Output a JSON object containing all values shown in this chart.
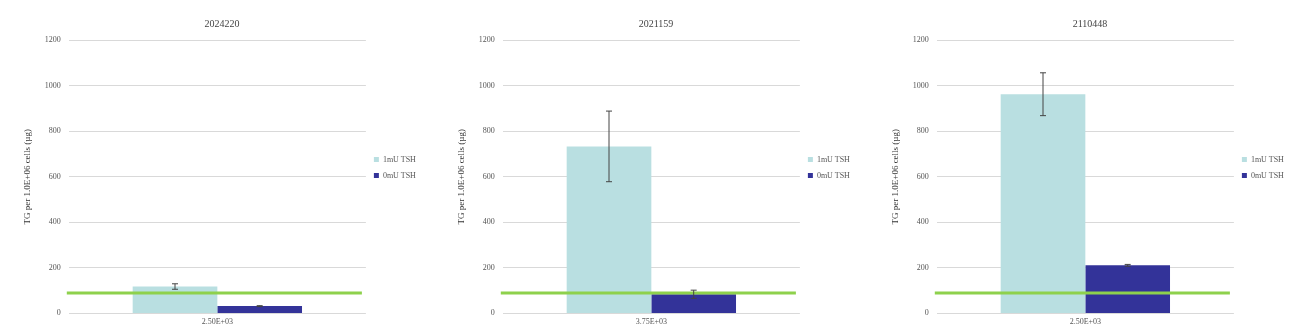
{
  "chart_data": [
    {
      "type": "bar",
      "title": "2024220",
      "ylabel": "TG per 1.0E+06 cells (µg)",
      "categories": [
        "2.50E+03"
      ],
      "ylim": [
        0,
        1200
      ],
      "yticks": [
        0,
        200,
        400,
        600,
        800,
        1000,
        1200
      ],
      "grid": "y",
      "legend": "right",
      "series": [
        {
          "name": "1mU TSH",
          "color": "#b9dfe1",
          "values": [
            118
          ],
          "errors": [
            12
          ]
        },
        {
          "name": "0mU TSH",
          "color": "#333399",
          "values": [
            32
          ],
          "errors": [
            2
          ]
        }
      ],
      "ref_lines": [
        {
          "axis": "y",
          "value": 90,
          "color": "#8ed14c"
        }
      ]
    },
    {
      "type": "bar",
      "title": "2021159",
      "ylabel": "TG per 1.0E+06 cells (µg)",
      "categories": [
        "3.75E+03"
      ],
      "ylim": [
        0,
        1200
      ],
      "yticks": [
        0,
        200,
        400,
        600,
        800,
        1000,
        1200
      ],
      "grid": "y",
      "legend": "right",
      "series": [
        {
          "name": "1mU TSH",
          "color": "#b9dfe1",
          "values": [
            733
          ],
          "errors": [
            155
          ]
        },
        {
          "name": "0mU TSH",
          "color": "#333399",
          "values": [
            84
          ],
          "errors": [
            18
          ]
        }
      ],
      "ref_lines": [
        {
          "axis": "y",
          "value": 90,
          "color": "#8ed14c"
        }
      ]
    },
    {
      "type": "bar",
      "title": "2110448",
      "ylabel": "TG per 1.0E+06 cells (µg)",
      "categories": [
        "2.50E+03"
      ],
      "ylim": [
        0,
        1200
      ],
      "yticks": [
        0,
        200,
        400,
        600,
        800,
        1000,
        1200
      ],
      "grid": "y",
      "legend": "right",
      "series": [
        {
          "name": "1mU TSH",
          "color": "#b9dfe1",
          "values": [
            962
          ],
          "errors": [
            94
          ]
        },
        {
          "name": "0mU TSH",
          "color": "#333399",
          "values": [
            211
          ],
          "errors": [
            4
          ]
        }
      ],
      "ref_lines": [
        {
          "axis": "y",
          "value": 90,
          "color": "#8ed14c"
        }
      ]
    }
  ]
}
